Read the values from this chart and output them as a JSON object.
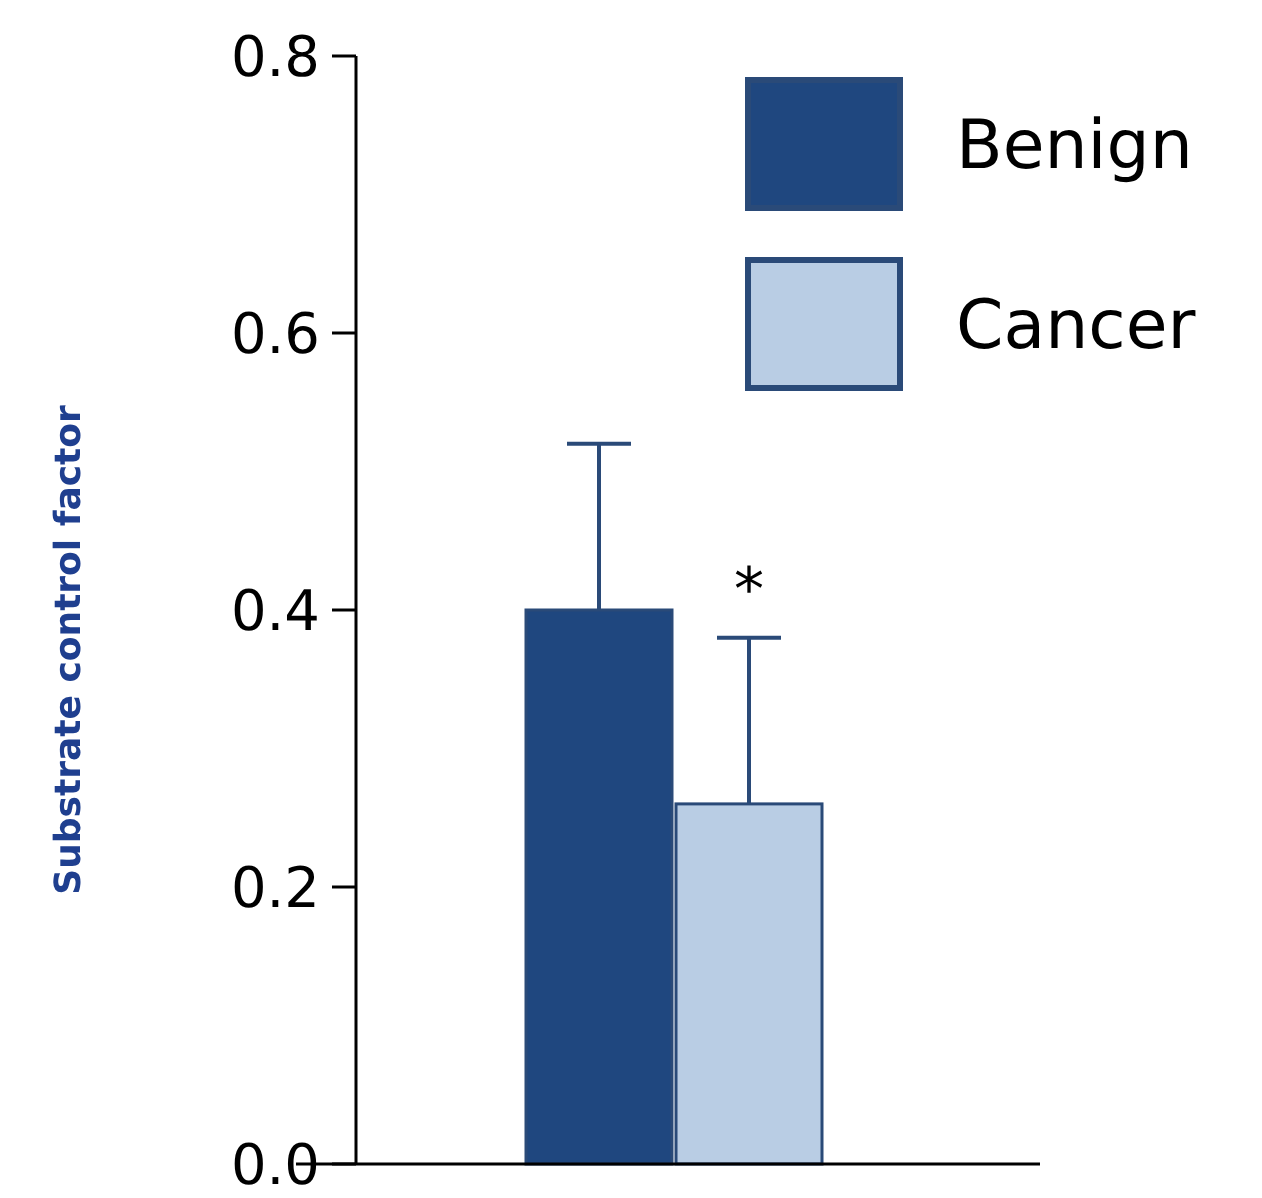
{
  "chart_data": {
    "type": "bar",
    "ylabel": "Substrate control factor",
    "categories": [
      null
    ],
    "series": [
      {
        "name": "Benign",
        "color": "#1f477f",
        "values": [
          0.4
        ],
        "errors": [
          [
            0.4,
            0.52
          ]
        ]
      },
      {
        "name": "Cancer",
        "color": "#b9cde4",
        "values": [
          0.26
        ],
        "errors": [
          [
            0.26,
            0.38
          ]
        ]
      }
    ],
    "ylim": [
      0,
      0.8
    ],
    "yticks": [
      {
        "value": 0,
        "label": "0.0"
      },
      0.2,
      0.4,
      0.6,
      0.8
    ],
    "grid": false,
    "legend": "top right",
    "annotations": [
      "*"
    ]
  }
}
